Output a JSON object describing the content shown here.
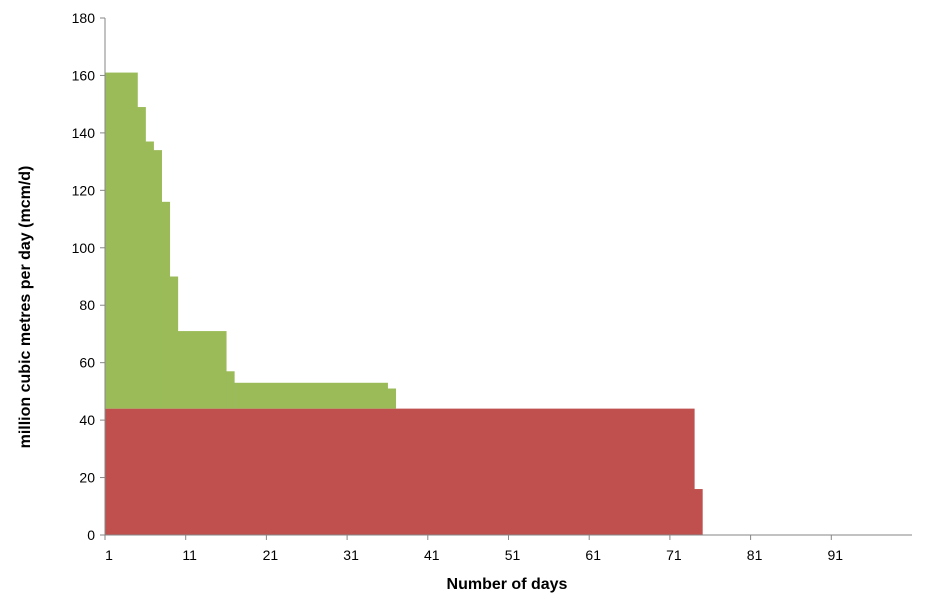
{
  "chart_data": {
    "type": "area",
    "xlabel": "Number of days",
    "ylabel": "million cubic metres per day (mcm/d)",
    "xlim": [
      0,
      100
    ],
    "ylim": [
      0,
      180
    ],
    "x_ticks": [
      1,
      11,
      21,
      31,
      41,
      51,
      61,
      71,
      81,
      91
    ],
    "x_tick_labels": [
      "1",
      "11",
      "21",
      "31",
      "41",
      "51",
      "61",
      "71",
      "81",
      "91"
    ],
    "y_ticks": [
      0,
      20,
      40,
      60,
      80,
      100,
      120,
      140,
      160,
      180
    ],
    "y_tick_labels": [
      "0",
      "20",
      "40",
      "60",
      "80",
      "100",
      "120",
      "140",
      "160",
      "180"
    ],
    "grid": false,
    "legend": false,
    "series": [
      {
        "color": "#C0504D",
        "steps": [
          {
            "x_start": 0,
            "x_end": 73,
            "value": 44
          },
          {
            "x_start": 73,
            "x_end": 74,
            "value": 16
          }
        ]
      },
      {
        "color": "#9BBB59",
        "steps": [
          {
            "x_start": 0,
            "x_end": 4,
            "value": 161
          },
          {
            "x_start": 4,
            "x_end": 5,
            "value": 149
          },
          {
            "x_start": 5,
            "x_end": 6,
            "value": 137
          },
          {
            "x_start": 6,
            "x_end": 7,
            "value": 134
          },
          {
            "x_start": 7,
            "x_end": 8,
            "value": 116
          },
          {
            "x_start": 8,
            "x_end": 9,
            "value": 90
          },
          {
            "x_start": 9,
            "x_end": 15,
            "value": 71
          },
          {
            "x_start": 15,
            "x_end": 16,
            "value": 57
          },
          {
            "x_start": 16,
            "x_end": 35,
            "value": 53
          },
          {
            "x_start": 35,
            "x_end": 36,
            "value": 51
          }
        ]
      }
    ]
  }
}
